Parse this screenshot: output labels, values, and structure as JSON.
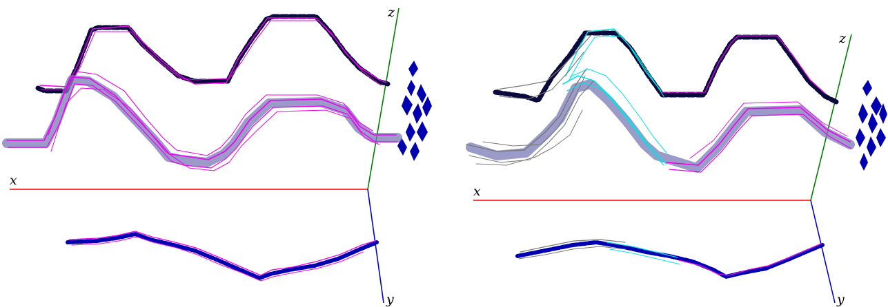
{
  "figure": {
    "panels": [
      {
        "id": "left",
        "axis_labels": {
          "x": "x",
          "y": "y",
          "z": "z"
        },
        "colors": {
          "x_axis": "#ff0000",
          "y_axis": "#0000dd",
          "z_axis": "#008000",
          "projection_dark": "#0a0a3c",
          "projection_blue": "#0000b0",
          "trajectory_fit": "#ee00ee",
          "trajectory_shadow": "#7a7ab8"
        }
      },
      {
        "id": "right",
        "axis_labels": {
          "x": "x",
          "y": "y",
          "z": "z"
        },
        "colors": {
          "x_axis": "#ff0000",
          "y_axis": "#0000dd",
          "z_axis": "#008000",
          "projection_dark": "#0a0a3c",
          "projection_blue": "#0000b0",
          "trajectory_fit": "#ee00ee",
          "trajectory_shadow": "#7a7ab8",
          "trajectory_cyan": "#00e5e5",
          "trajectory_gray": "#777777"
        }
      }
    ]
  }
}
